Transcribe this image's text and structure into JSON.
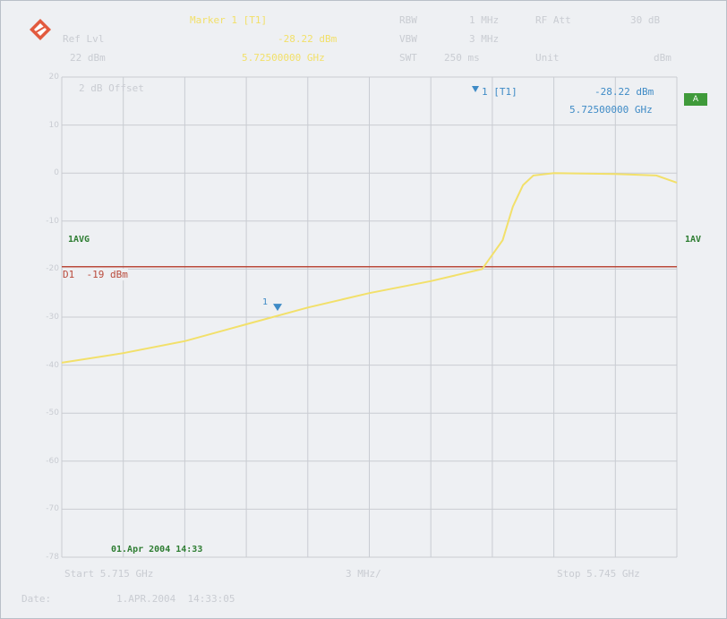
{
  "header": {
    "marker_title": "Marker 1 [T1]",
    "marker_level": "-28.22 dBm",
    "marker_freq": "5.72500000 GHz",
    "ref_lvl_label": "Ref Lvl",
    "ref_lvl_value": "22 dBm",
    "rbw_label": "RBW",
    "rbw_value": "1 MHz",
    "rf_att_label": "RF Att",
    "rf_att_value": "30 dB",
    "vbw_label": "VBW",
    "vbw_value": "3 MHz",
    "swt_label": "SWT",
    "swt_value": "250 ms",
    "unit_label": "Unit",
    "unit_value": "dBm"
  },
  "plot": {
    "offset_label": "2 dB Offset",
    "marker_readout_label": "1 [T1]",
    "marker_readout_level": "-28.22 dBm",
    "marker_readout_freq": "5.72500000 GHz",
    "trace_badge": "A",
    "left_annotation": "1AVG",
    "right_annotation": "1AV",
    "display_line_label": "D1  -19 dBm",
    "marker_number": "1",
    "date_stamp": "01.Apr 2004 14:33",
    "y_ticks": [
      "20",
      "10",
      "0",
      "-10",
      "-20",
      "-30",
      "-40",
      "-50",
      "-60",
      "-70",
      "-78"
    ]
  },
  "footer": {
    "start": "Start 5.715 GHz",
    "span_div": "3 MHz/",
    "stop": "Stop 5.745 GHz",
    "date_label": "Date:",
    "date_value": "1.APR.2004  14:33:05"
  },
  "colors": {
    "trace": "#f2e06a",
    "display_line": "#b94a3b",
    "grid": "#c9ccd2",
    "marker": "#3f8bc6"
  },
  "chart_data": {
    "type": "line",
    "x_unit": "GHz",
    "y_unit": "dBm",
    "xlim": [
      5.715,
      5.745
    ],
    "ylim": [
      -78,
      22
    ],
    "display_line_dbm": -19,
    "marker": {
      "x": 5.725,
      "y": -28.22
    },
    "series": [
      {
        "x": [
          5.715,
          5.718,
          5.721,
          5.724,
          5.727,
          5.73,
          5.733,
          5.7355,
          5.7365,
          5.737,
          5.7375,
          5.738,
          5.739,
          5.742,
          5.744,
          5.745
        ],
        "y": [
          -37.5,
          -35.5,
          -33.0,
          -29.5,
          -26.0,
          -23.0,
          -20.5,
          -18.0,
          -12.0,
          -5.0,
          -0.5,
          1.5,
          2.0,
          1.8,
          1.5,
          0.0
        ]
      }
    ]
  }
}
